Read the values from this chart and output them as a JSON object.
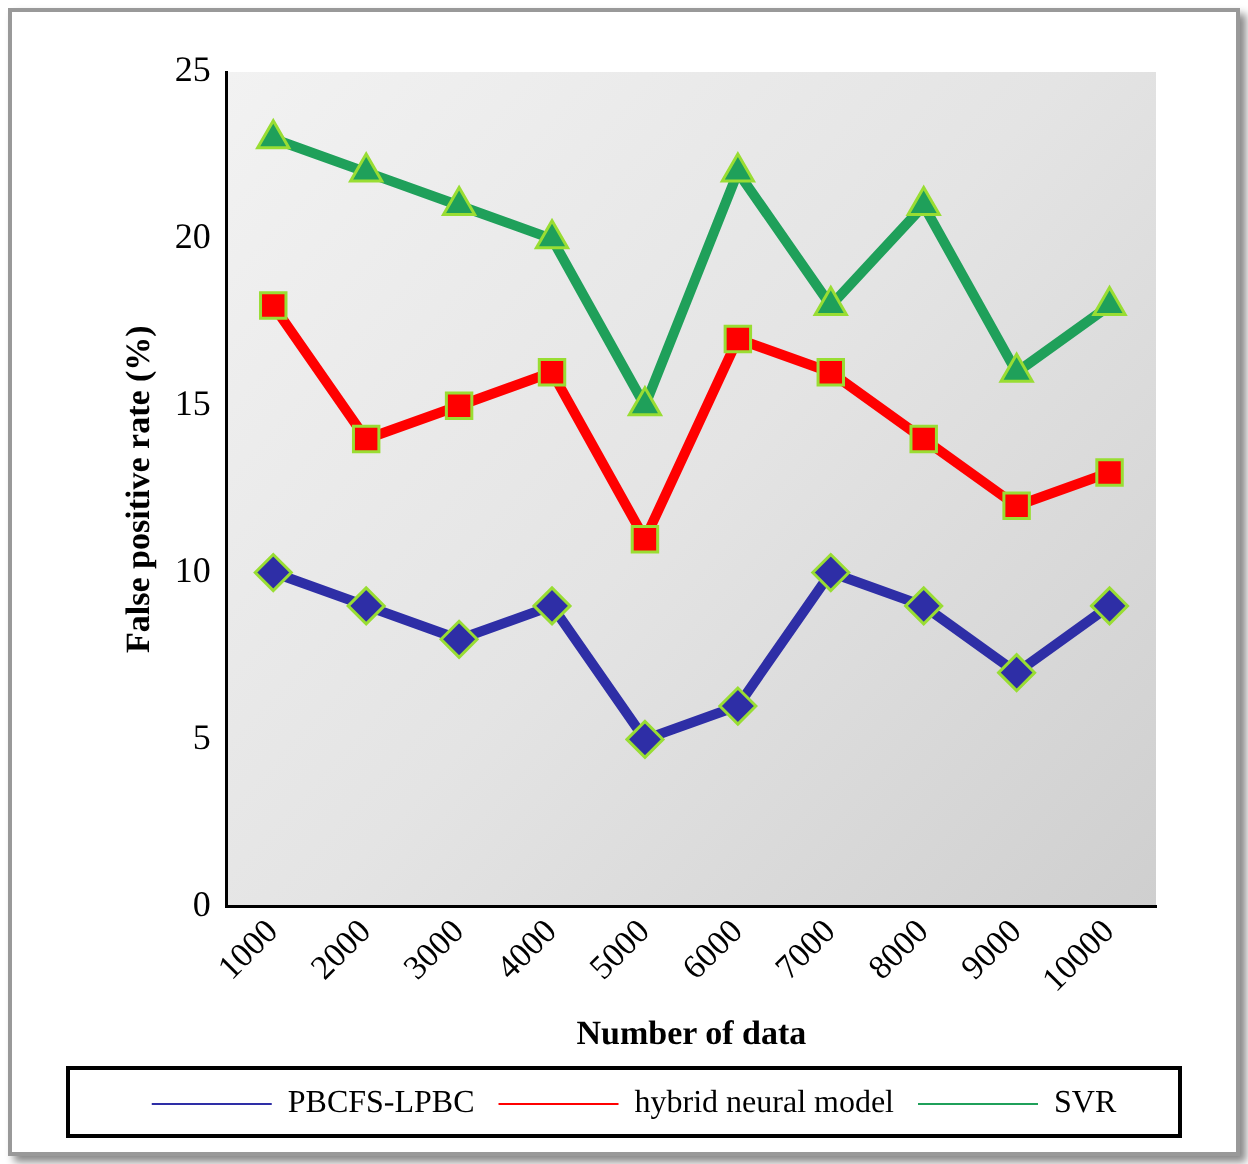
{
  "chart_data": {
    "type": "line",
    "xlabel": "Number of data",
    "ylabel": "False positive rate (%)",
    "categories": [
      "1000",
      "2000",
      "3000",
      "4000",
      "5000",
      "6000",
      "7000",
      "8000",
      "9000",
      "10000"
    ],
    "ylim": [
      0,
      25
    ],
    "yticks": [
      0,
      5,
      10,
      15,
      20,
      25
    ],
    "grid": false,
    "legend": "bottom",
    "line_style": "solid",
    "series": [
      {
        "name": "PBCFS-LPBC",
        "color": "#2e2ea6",
        "marker": "diamond",
        "values": [
          10,
          9,
          8,
          9,
          5,
          6,
          10,
          9,
          7,
          9
        ]
      },
      {
        "name": "hybrid neural model",
        "color": "#ff0000",
        "marker": "square",
        "values": [
          18,
          14,
          15,
          16,
          11,
          17,
          16,
          14,
          12,
          13
        ]
      },
      {
        "name": "SVR",
        "color": "#1fa05a",
        "marker": "triangle",
        "values": [
          23,
          22,
          21,
          20,
          15,
          22,
          18,
          21,
          16,
          18
        ]
      }
    ]
  }
}
